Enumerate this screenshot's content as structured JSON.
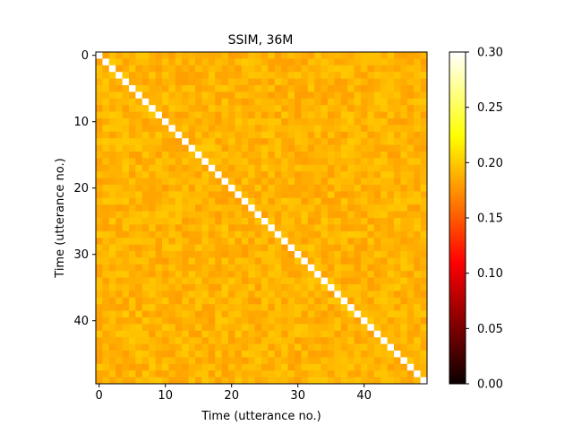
{
  "chart_data": {
    "type": "heatmap",
    "title": "SSIM, 36M",
    "xlabel": "Time (utterance no.)",
    "ylabel": "Time (utterance no.)",
    "n": 50,
    "x_ticks": [
      0,
      10,
      20,
      30,
      40
    ],
    "y_ticks": [
      0,
      10,
      20,
      30,
      40
    ],
    "diagonal_value": 0.3,
    "off_diagonal_range": [
      0.18,
      0.2
    ],
    "colormap": "hot",
    "colorbar": {
      "vmin": 0.0,
      "vmax": 0.3,
      "ticks": [
        "0.00",
        "0.05",
        "0.10",
        "0.15",
        "0.20",
        "0.25",
        "0.30"
      ]
    },
    "grid": false
  }
}
